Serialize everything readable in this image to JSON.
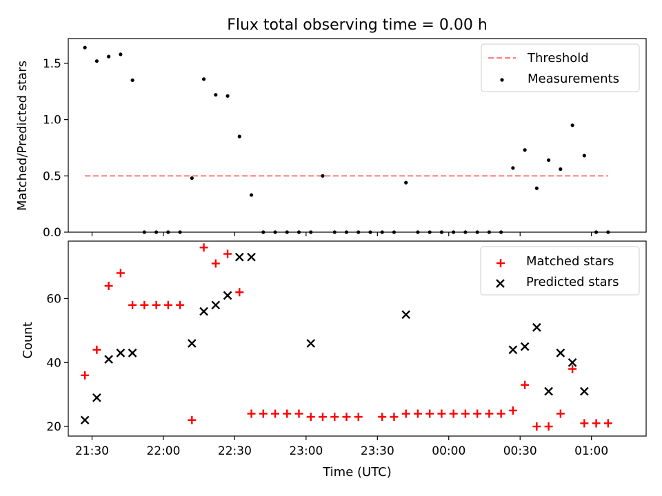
{
  "title": "Flux total observing time = 0.00 h",
  "chart_data": [
    {
      "type": "scatter",
      "ylabel": "Matched/Predicted stars",
      "xlabel": "",
      "xlim": [
        "21:20",
        "01:23"
      ],
      "ylim": [
        0,
        1.72
      ],
      "y_ticks": [
        0.0,
        0.5,
        1.0,
        1.5
      ],
      "y_tick_labels": [
        "0.0",
        "0.5",
        "1.0",
        "1.5"
      ],
      "x_ticks": [
        "21:30",
        "22:00",
        "22:30",
        "23:00",
        "23:30",
        "00:00",
        "00:30",
        "01:00"
      ],
      "x_tick_labels_shown": false,
      "grid": false,
      "legend": {
        "position": "upper right",
        "entries": [
          "Threshold",
          "Measurements"
        ]
      },
      "series": [
        {
          "name": "Threshold",
          "style": "dashed-line",
          "color": "#ff8080",
          "x": [
            "21:27",
            "01:07"
          ],
          "y": [
            0.5,
            0.5
          ]
        },
        {
          "name": "Measurements",
          "style": "dot",
          "color": "#000000",
          "x": [
            "21:27",
            "21:32",
            "21:37",
            "21:42",
            "21:47",
            "21:52",
            "21:57",
            "22:02",
            "22:07",
            "22:12",
            "22:17",
            "22:22",
            "22:27",
            "22:32",
            "22:37",
            "22:42",
            "22:47",
            "22:52",
            "22:57",
            "23:02",
            "23:07",
            "23:12",
            "23:17",
            "23:22",
            "23:27",
            "23:32",
            "23:37",
            "23:42",
            "23:47",
            "23:52",
            "23:57",
            "00:02",
            "00:07",
            "00:12",
            "00:17",
            "00:22",
            "00:27",
            "00:32",
            "00:37",
            "00:42",
            "00:47",
            "00:52",
            "00:57",
            "01:02",
            "01:07"
          ],
          "y": [
            1.64,
            1.52,
            1.56,
            1.58,
            1.35,
            0,
            0,
            0,
            0,
            0.48,
            1.36,
            1.22,
            1.21,
            0.85,
            0.33,
            0,
            0,
            0,
            0,
            0,
            0.5,
            0,
            0,
            0,
            0,
            0,
            0,
            0.44,
            0,
            0,
            0,
            0,
            0,
            0,
            0,
            0,
            0.57,
            0.73,
            0.39,
            0.64,
            0.56,
            0.95,
            0.68,
            0,
            0
          ]
        }
      ]
    },
    {
      "type": "scatter",
      "ylabel": "Count",
      "xlabel": "Time (UTC)",
      "xlim": [
        "21:20",
        "01:23"
      ],
      "ylim": [
        17,
        78
      ],
      "y_ticks": [
        20,
        40,
        60
      ],
      "y_tick_labels": [
        "20",
        "40",
        "60"
      ],
      "x_ticks": [
        "21:30",
        "22:00",
        "22:30",
        "23:00",
        "23:30",
        "00:00",
        "00:30",
        "01:00"
      ],
      "x_tick_labels": [
        "21:30",
        "22:00",
        "22:30",
        "23:00",
        "23:30",
        "00:00",
        "00:30",
        "01:00"
      ],
      "grid": false,
      "legend": {
        "position": "upper right",
        "entries": [
          "Matched stars",
          "Predicted stars"
        ]
      },
      "series": [
        {
          "name": "Matched stars",
          "marker": "plus",
          "color": "#ff0000",
          "x": [
            "21:27",
            "21:32",
            "21:37",
            "21:42",
            "21:47",
            "21:52",
            "21:57",
            "22:02",
            "22:07",
            "22:12",
            "22:17",
            "22:22",
            "22:27",
            "22:32",
            "22:37",
            "22:42",
            "22:47",
            "22:52",
            "22:57",
            "23:02",
            "23:07",
            "23:12",
            "23:17",
            "23:22",
            "23:32",
            "23:37",
            "23:42",
            "23:47",
            "23:52",
            "23:57",
            "00:02",
            "00:07",
            "00:12",
            "00:17",
            "00:22",
            "00:27",
            "00:32",
            "00:37",
            "00:42",
            "00:47",
            "00:52",
            "00:57",
            "01:02",
            "01:07"
          ],
          "y": [
            36,
            44,
            64,
            68,
            58,
            58,
            58,
            58,
            58,
            22,
            76,
            71,
            74,
            62,
            24,
            24,
            24,
            24,
            24,
            23,
            23,
            23,
            23,
            23,
            23,
            23,
            24,
            24,
            24,
            24,
            24,
            24,
            24,
            24,
            24,
            25,
            33,
            20,
            20,
            24,
            38,
            21,
            21,
            21
          ]
        },
        {
          "name": "Predicted stars",
          "marker": "x",
          "color": "#000000",
          "x": [
            "21:27",
            "21:32",
            "21:37",
            "21:42",
            "21:47",
            "22:12",
            "22:17",
            "22:22",
            "22:27",
            "22:32",
            "22:37",
            "23:02",
            "23:42",
            "00:27",
            "00:32",
            "00:37",
            "00:42",
            "00:47",
            "00:52",
            "00:57"
          ],
          "y": [
            22,
            29,
            41,
            43,
            43,
            46,
            56,
            58,
            61,
            73,
            73,
            46,
            55,
            44,
            45,
            51,
            31,
            43,
            40,
            31
          ]
        }
      ]
    }
  ]
}
